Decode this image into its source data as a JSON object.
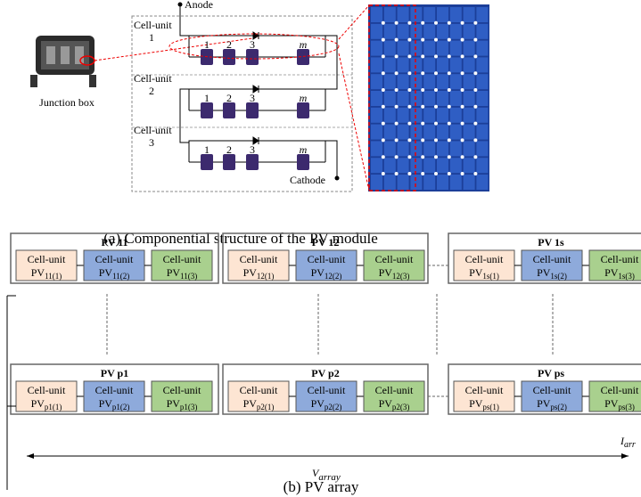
{
  "module": {
    "anode": "Anode",
    "cathode": "Cathode",
    "junction_box": "Junction box",
    "cell_units": [
      {
        "label": "Cell-unit",
        "index": "1"
      },
      {
        "label": "Cell-unit",
        "index": "2"
      },
      {
        "label": "Cell-unit",
        "index": "3"
      }
    ],
    "cell_numbers": [
      "1",
      "2",
      "3",
      "m"
    ],
    "caption": "(a) Componential structure of the PV module"
  },
  "array": {
    "modules": [
      {
        "title": "PV 11",
        "cells": [
          {
            "label": "Cell-unit",
            "main": "PV",
            "sub": "11(1)"
          },
          {
            "label": "Cell-unit",
            "main": "PV",
            "sub": "11(2)"
          },
          {
            "label": "Cell-unit",
            "main": "PV",
            "sub": "11(3)"
          }
        ]
      },
      {
        "title": "PV 12",
        "cells": [
          {
            "label": "Cell-unit",
            "main": "PV",
            "sub": "12(1)"
          },
          {
            "label": "Cell-unit",
            "main": "PV",
            "sub": "12(2)"
          },
          {
            "label": "Cell-unit",
            "main": "PV",
            "sub": "12(3)"
          }
        ]
      },
      {
        "title": "PV 1s",
        "cells": [
          {
            "label": "Cell-unit",
            "main": "PV",
            "sub": "1s(1)"
          },
          {
            "label": "Cell-unit",
            "main": "PV",
            "sub": "1s(2)"
          },
          {
            "label": "Cell-unit",
            "main": "PV",
            "sub": "1s(3)"
          }
        ]
      },
      {
        "title": "PV p1",
        "cells": [
          {
            "label": "Cell-unit",
            "main": "PV",
            "sub": "p1(1)"
          },
          {
            "label": "Cell-unit",
            "main": "PV",
            "sub": "p1(2)"
          },
          {
            "label": "Cell-unit",
            "main": "PV",
            "sub": "p1(3)"
          }
        ]
      },
      {
        "title": "PV p2",
        "cells": [
          {
            "label": "Cell-unit",
            "main": "PV",
            "sub": "p2(1)"
          },
          {
            "label": "Cell-unit",
            "main": "PV",
            "sub": "p2(2)"
          },
          {
            "label": "Cell-unit",
            "main": "PV",
            "sub": "p2(3)"
          }
        ]
      },
      {
        "title": "PV ps",
        "cells": [
          {
            "label": "Cell-unit",
            "main": "PV",
            "sub": "ps(1)"
          },
          {
            "label": "Cell-unit",
            "main": "PV",
            "sub": "ps(2)"
          },
          {
            "label": "Cell-unit",
            "main": "PV",
            "sub": "ps(3)"
          }
        ]
      }
    ],
    "voltage": {
      "main": "V",
      "sub": "array"
    },
    "current": {
      "main": "I",
      "sub": "arr"
    },
    "caption": "(b) PV array"
  }
}
